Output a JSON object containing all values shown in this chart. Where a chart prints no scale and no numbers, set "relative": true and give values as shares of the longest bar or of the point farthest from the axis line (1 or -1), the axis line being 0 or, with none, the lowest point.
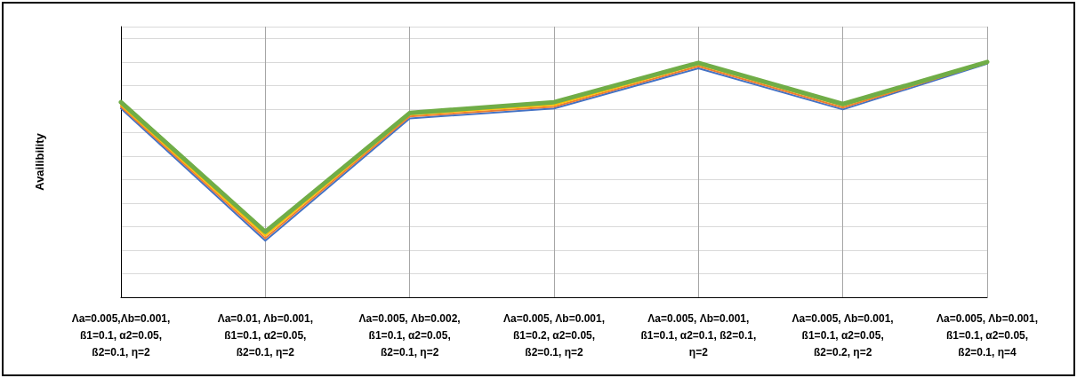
{
  "chart_data": {
    "type": "line",
    "relative": true,
    "ylabel": "Availibility",
    "grid": true,
    "marker": "none",
    "line_style": "solid",
    "categories": [
      "Λa=0.005,Λb=0.001,\nß1=0.1, α2=0.05,\nß2=0.1, η=2",
      "Λa=0.01, Λb=0.001,\nß1=0.1, α2=0.05,\nß2=0.1, η=2",
      "Λa=0.005, Λb=0.002,\nß1=0.1, α2=0.05,\nß2=0.1, η=2",
      "Λa=0.005, Λb=0.001,\nß1=0.2, α2=0.05,\nß2=0.1, η=2",
      "Λa=0.005, Λb=0.001,\nß1=0.1, α2=0.1, ß2=0.1,\nη=2",
      "Λa=0.005, Λb=0.001,\nß1=0.1, α2=0.05,\nß2=0.2, η=2",
      "Λa=0.005, Λb=0.001,\nß1=0.1, α2=0.05,\nß2=0.1, η=4"
    ],
    "series": [
      {
        "color": "#4472c4",
        "values": [
          0.802,
          0.24,
          0.76,
          0.802,
          0.973,
          0.798,
          0.992
        ]
      },
      {
        "color": "#ed7d31",
        "values": [
          0.81,
          0.251,
          0.768,
          0.81,
          0.981,
          0.806,
          0.996
        ]
      },
      {
        "color": "#ffc000",
        "values": [
          0.817,
          0.262,
          0.776,
          0.817,
          0.989,
          0.814,
          0.996
        ]
      },
      {
        "color": "#70ad47",
        "values": [
          0.829,
          0.278,
          0.783,
          0.829,
          0.996,
          0.821,
          1
        ]
      }
    ]
  }
}
